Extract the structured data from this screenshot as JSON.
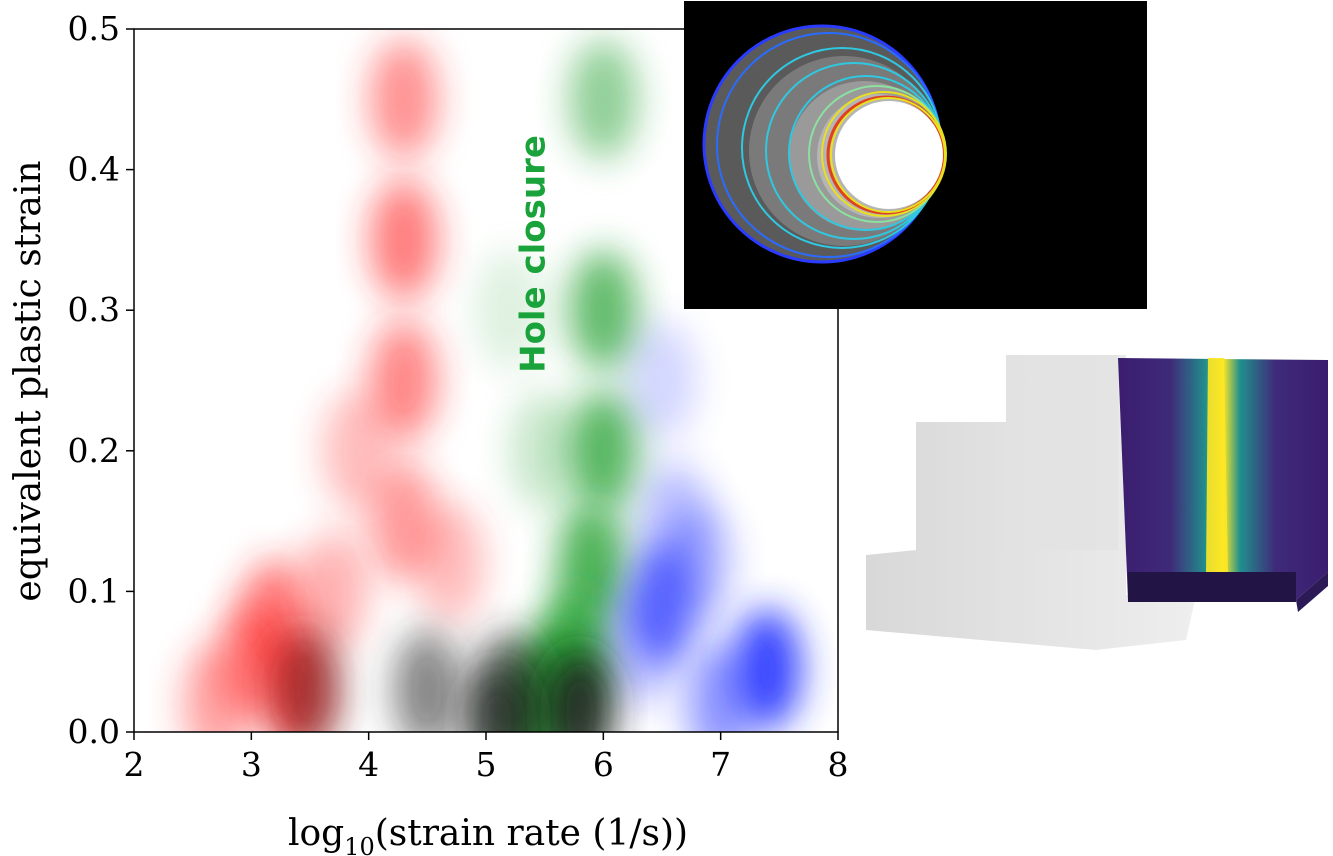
{
  "chart_data": {
    "type": "heatmap",
    "xlabel": "log10(strain rate (1/s))",
    "xlabel_parts": {
      "base": "log",
      "sub": "10",
      "rest": "(strain rate (1/s))"
    },
    "ylabel": "equivalent plastic strain",
    "xlim": [
      2,
      8
    ],
    "ylim": [
      0,
      0.5
    ],
    "xticks": [
      "2",
      "3",
      "4",
      "5",
      "6",
      "7",
      "8"
    ],
    "yticks": [
      "0.0",
      "0.1",
      "0.2",
      "0.3",
      "0.4",
      "0.5"
    ],
    "grid": false,
    "annotations": [
      {
        "text": "Hole closure",
        "x": 5.5,
        "y": 0.34,
        "color": "#1aa33a",
        "rotation": -90
      }
    ],
    "series": [
      {
        "color": "#ff2020",
        "points": [
          [
            4.3,
            0.35,
            0.6
          ],
          [
            4.3,
            0.25,
            0.55
          ],
          [
            4.3,
            0.15,
            0.45
          ],
          [
            4.3,
            0.45,
            0.5
          ],
          [
            3.2,
            0.08,
            0.6
          ],
          [
            3.4,
            0.03,
            0.9
          ],
          [
            3.0,
            0.05,
            0.5
          ],
          [
            3.7,
            0.1,
            0.35
          ],
          [
            4.7,
            0.12,
            0.3
          ],
          [
            2.7,
            0.02,
            0.4
          ],
          [
            3.9,
            0.2,
            0.3
          ]
        ]
      },
      {
        "color": "#1f9e2a",
        "points": [
          [
            6.0,
            0.45,
            0.5
          ],
          [
            6.0,
            0.3,
            0.7
          ],
          [
            6.0,
            0.2,
            0.75
          ],
          [
            5.9,
            0.12,
            0.8
          ],
          [
            5.75,
            0.06,
            0.85
          ],
          [
            5.6,
            0.03,
            0.9
          ],
          [
            5.4,
            0.01,
            0.9
          ],
          [
            5.5,
            0.2,
            0.25
          ],
          [
            5.2,
            0.3,
            0.15
          ]
        ]
      },
      {
        "color": "#2030ff",
        "points": [
          [
            6.5,
            0.09,
            0.7
          ],
          [
            7.4,
            0.045,
            0.9
          ],
          [
            7.0,
            0.02,
            0.5
          ],
          [
            6.6,
            0.15,
            0.3
          ],
          [
            6.8,
            0.12,
            0.35
          ],
          [
            6.5,
            0.25,
            0.2
          ],
          [
            6.3,
            0.06,
            0.3
          ]
        ]
      },
      {
        "color": "#202020",
        "points": [
          [
            4.5,
            0.03,
            0.55
          ],
          [
            5.2,
            0.03,
            0.6
          ],
          [
            5.8,
            0.015,
            0.9
          ],
          [
            5.1,
            0.005,
            0.7
          ],
          [
            3.5,
            0.03,
            0.4
          ]
        ]
      }
    ]
  },
  "colors": {
    "hole_annotation": "#1aa33a",
    "inset_background": "#000000",
    "inset_ring_blue": "#2a3cff",
    "inset_ring_cyan": "#30c8e0",
    "inset_ring_yellow": "#e8e020",
    "inset_ring_red": "#e04020"
  }
}
